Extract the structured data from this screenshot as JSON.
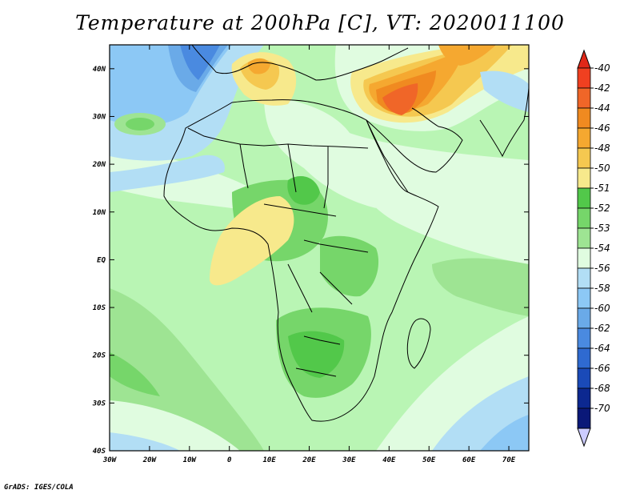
{
  "title": "Temperature at 200hPa [C], VT: 2020011100",
  "footer": "GrADS: IGES/COLA",
  "map": {
    "lon_range": [
      -30,
      75
    ],
    "lat_range": [
      -40,
      45
    ],
    "lon_ticks": [
      "30W",
      "20W",
      "10W",
      "0",
      "10E",
      "20E",
      "30E",
      "40E",
      "50E",
      "60E",
      "70E"
    ],
    "lon_tick_values": [
      -30,
      -20,
      -10,
      0,
      10,
      20,
      30,
      40,
      50,
      60,
      70
    ],
    "lat_ticks": [
      "40N",
      "30N",
      "20N",
      "10N",
      "EQ",
      "10S",
      "20S",
      "30S",
      "40S"
    ],
    "lat_tick_values": [
      40,
      30,
      20,
      10,
      0,
      -10,
      -20,
      -30,
      -40
    ],
    "background_color": "#b9f5b4"
  },
  "colorbar": {
    "labels": [
      "-40",
      "-42",
      "-44",
      "-46",
      "-48",
      "-50",
      "-51",
      "-52",
      "-53",
      "-54",
      "-56",
      "-58",
      "-60",
      "-62",
      "-64",
      "-66",
      "-68",
      "-70"
    ],
    "colors": [
      "#f04020",
      "#f06628",
      "#f08a20",
      "#f5a830",
      "#f5c850",
      "#f7e98c",
      "#52c84a",
      "#76d66a",
      "#9ee493",
      "#e0fce0",
      "#b2def5",
      "#8cc8f5",
      "#6aaae8",
      "#4a8ae0",
      "#2f6ad0",
      "#1a4ab8",
      "#0c2890",
      "#0a1878"
    ],
    "top_arrow_color": "#e02818",
    "bottom_arrow_color": "#ccccff"
  }
}
